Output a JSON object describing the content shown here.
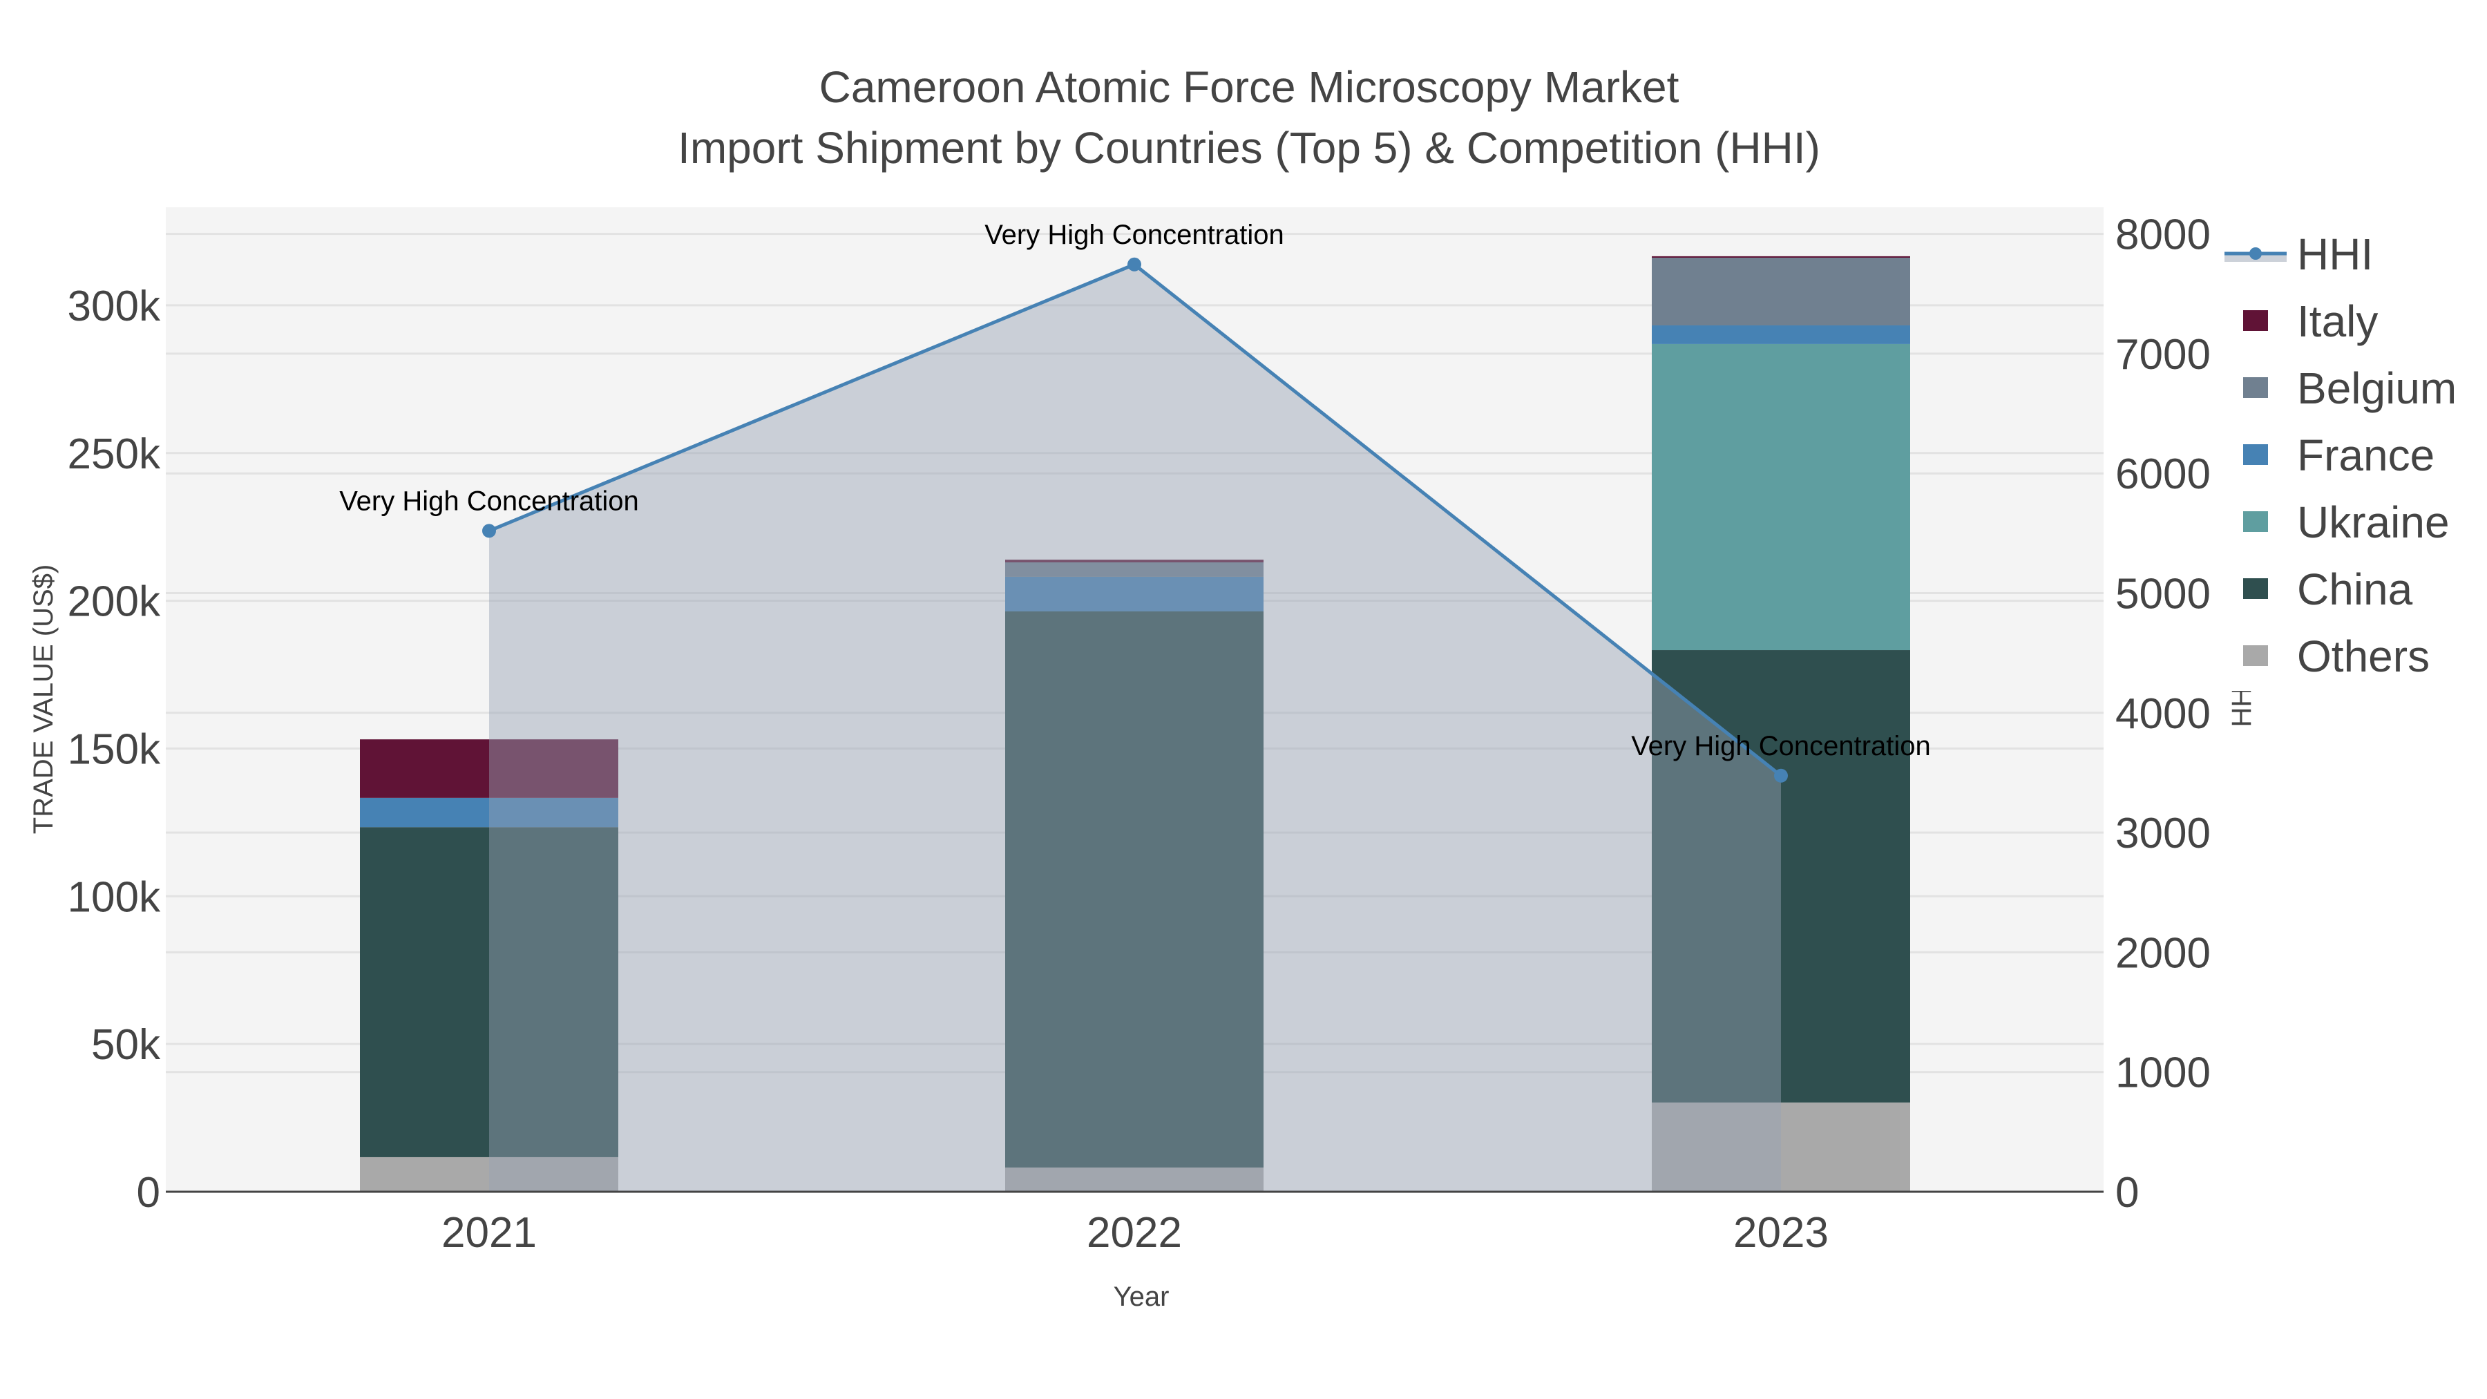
{
  "chart_data": {
    "type": "bar",
    "stacked": true,
    "title": "Cameroon Atomic Force Microscopy Market",
    "subtitle": "Import Shipment by Countries (Top 5) & Competition (HHI)",
    "xlabel": "Year",
    "ylabel": "TRADE VALUE (US$)",
    "y2label": "HHI",
    "categories": [
      "2021",
      "2022",
      "2023"
    ],
    "ylim": [
      0,
      333000
    ],
    "y2lim": [
      0,
      8240
    ],
    "yticks": [
      0,
      50000,
      100000,
      150000,
      200000,
      250000,
      300000
    ],
    "ytick_labels": [
      "0",
      "50k",
      "100k",
      "150k",
      "200k",
      "250k",
      "300k"
    ],
    "y2ticks": [
      0,
      1000,
      2000,
      3000,
      4000,
      5000,
      6000,
      7000,
      8000
    ],
    "y2tick_labels": [
      "0",
      "1000",
      "2000",
      "3000",
      "4000",
      "5000",
      "6000",
      "7000",
      "8000"
    ],
    "grid": true,
    "legend_position": "right",
    "series": [
      {
        "name": "Others",
        "color": "#a9a9a9",
        "values": [
          11700,
          8200,
          30200
        ]
      },
      {
        "name": "China",
        "color": "#2f4f4f",
        "values": [
          111700,
          188200,
          153100
        ]
      },
      {
        "name": "Ukraine",
        "color": "#5f9ea0",
        "values": [
          0,
          0,
          103600
        ]
      },
      {
        "name": "France",
        "color": "#4682b4",
        "values": [
          9900,
          11700,
          6300
        ]
      },
      {
        "name": "Belgium",
        "color": "#708090",
        "values": [
          0,
          4900,
          22900
        ]
      },
      {
        "name": "Italy",
        "color": "#601336",
        "values": [
          19800,
          900,
          500
        ]
      }
    ],
    "line_series": {
      "name": "HHI",
      "axis": "y2",
      "color": "#4682b4",
      "fill": "rgba(119,136,153,0.35)",
      "values": [
        5520,
        7745,
        3475
      ]
    },
    "annotations": [
      {
        "category": "2021",
        "text": "Very High Concentration"
      },
      {
        "category": "2022",
        "text": "Very High Concentration"
      },
      {
        "category": "2023",
        "text": "Very High Concentration"
      }
    ],
    "legend": [
      "HHI",
      "Italy",
      "Belgium",
      "France",
      "Ukraine",
      "China",
      "Others"
    ]
  },
  "colors": {
    "plot_bg": "#f4f4f4",
    "grid": "#e2e2e2",
    "axis_line": "#444444",
    "text": "#444444"
  }
}
